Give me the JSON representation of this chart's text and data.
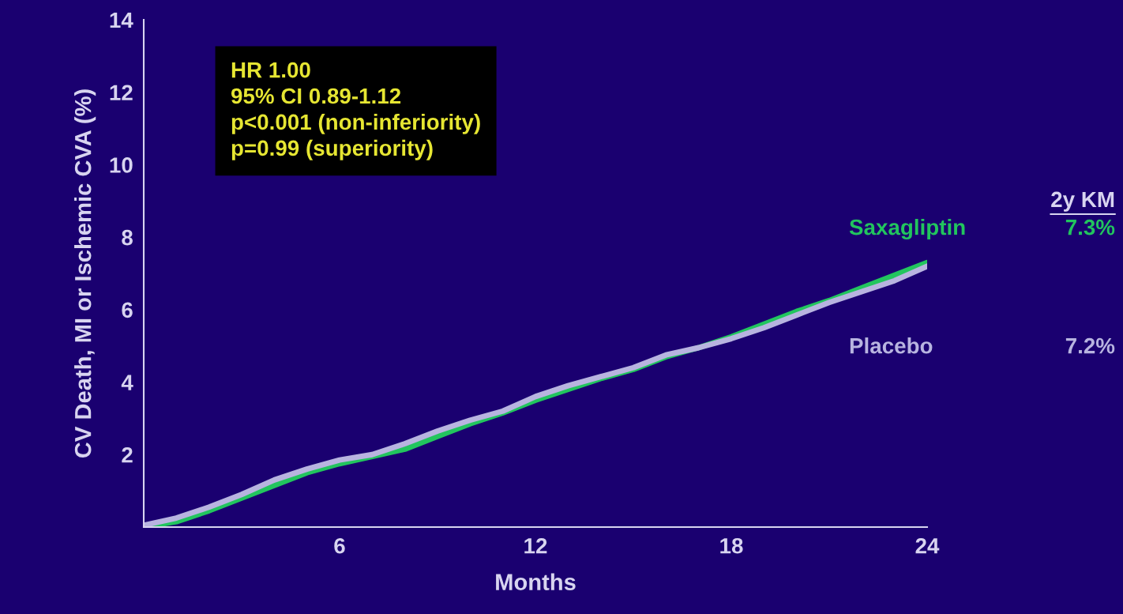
{
  "chart_data": {
    "type": "line",
    "xlabel": "Months",
    "ylabel": "CV Death, MI or Ischemic CVA (%)",
    "x": [
      0,
      1,
      2,
      3,
      4,
      5,
      6,
      7,
      8,
      9,
      10,
      11,
      12,
      13,
      14,
      15,
      16,
      17,
      18,
      19,
      20,
      21,
      22,
      23,
      24
    ],
    "series": [
      {
        "name": "Saxagliptin",
        "color": "#22c55e",
        "values": [
          0,
          0.15,
          0.45,
          0.8,
          1.15,
          1.5,
          1.75,
          1.95,
          2.15,
          2.5,
          2.85,
          3.15,
          3.5,
          3.8,
          4.1,
          4.35,
          4.7,
          4.95,
          5.25,
          5.6,
          5.95,
          6.25,
          6.6,
          6.95,
          7.3
        ]
      },
      {
        "name": "Placebo",
        "color": "#b8b4e0",
        "values": [
          0.05,
          0.25,
          0.55,
          0.9,
          1.3,
          1.6,
          1.85,
          2.0,
          2.3,
          2.65,
          2.95,
          3.2,
          3.6,
          3.9,
          4.15,
          4.4,
          4.75,
          4.95,
          5.2,
          5.5,
          5.85,
          6.2,
          6.5,
          6.8,
          7.2
        ]
      }
    ],
    "xlim": [
      0,
      24
    ],
    "xticks": [
      6,
      12,
      18,
      24
    ],
    "ylim": [
      0,
      14
    ],
    "yticks": [
      2,
      4,
      6,
      8,
      10,
      12,
      14
    ],
    "grid": false,
    "legend": false,
    "marker": "none",
    "line_style": "solid",
    "annotations": [
      "HR 1.00\n95% CI 0.89-1.12\np<0.001 (non-inferiority)\np=0.99 (superiority)",
      "2y KM",
      "7.3%",
      "7.2%"
    ]
  }
}
